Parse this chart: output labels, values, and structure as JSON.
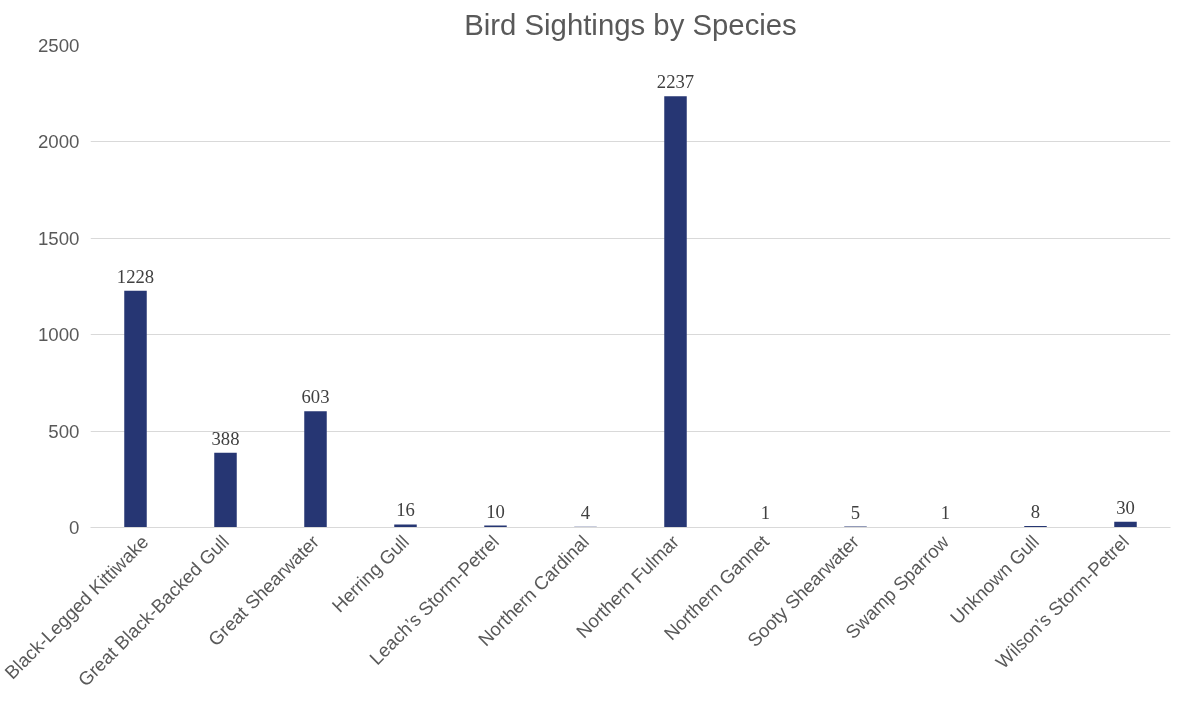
{
  "chart_data": {
    "type": "bar",
    "title": "Bird Sightings by Species",
    "categories": [
      "Black-Legged Kittiwake",
      "Great Black-Backed Gull",
      "Great Shearwater",
      "Herring Gull",
      "Leach’s Storm-Petrel",
      "Northern Cardinal",
      "Northern Fulmar",
      "Northern Gannet",
      "Sooty Shearwater",
      "Swamp Sparrow",
      "Unknown Gull",
      "Wilson’s Storm-Petrel"
    ],
    "values": [
      1228,
      388,
      603,
      16,
      10,
      4,
      2237,
      1,
      5,
      1,
      8,
      30
    ],
    "color": "#263673",
    "ylim": [
      0,
      2500
    ],
    "yticks": [
      0,
      500,
      1000,
      1500,
      2000,
      2500
    ],
    "grid": "y",
    "data_labels": true
  }
}
